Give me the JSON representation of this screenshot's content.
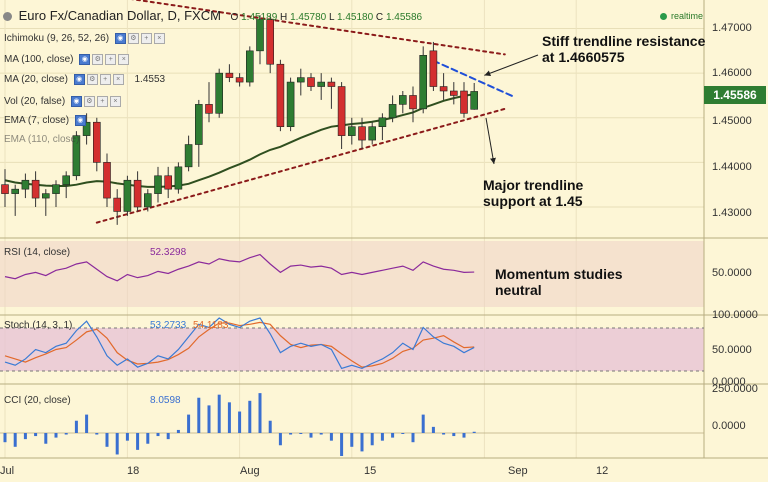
{
  "header": {
    "title": "Euro Fx/Canadian Dollar, D, FXCM",
    "open_label": "O",
    "open": "1.45189",
    "high_label": "H",
    "high": "1.45780",
    "low_label": "L",
    "low": "1.45180",
    "close_label": "C",
    "close": "1.45586",
    "realtime": "realtime"
  },
  "price_tag": "1.45586",
  "indicators": {
    "ichimoku": "Ichimoku (9, 26, 52, 26)",
    "ma100": "MA (100, close)",
    "ma20": "MA (20, close)",
    "ma20_value": "1.4553",
    "vol": "Vol (20, false)",
    "ema7": "EMA (7, close)",
    "ema110": "EMA (110, close)"
  },
  "annotations": {
    "resistance_line1": "Stiff trendline resistance",
    "resistance_line2": "at 1.4660575",
    "support_line1": "Major trendline",
    "support_line2": "support at 1.45",
    "momentum_line1": "Momentum studies",
    "momentum_line2": "neutral"
  },
  "panels": {
    "rsi": {
      "label": "RSI (14, close)",
      "value": "52.3298",
      "ticks": [
        "50.0000"
      ]
    },
    "stoch": {
      "label": "Stoch (14, 3, 1)",
      "k_value": "53.2733",
      "d_value": "54.1183",
      "ticks": [
        "100.0000",
        "50.0000",
        "0.0000"
      ]
    },
    "cci": {
      "label": "CCI (20, close)",
      "value": "8.0598",
      "ticks": [
        "250.0000",
        "0.0000"
      ]
    }
  },
  "colors": {
    "up": "#2e7d32",
    "down": "#d32f2f",
    "ma": "#2f4f1f",
    "trend": "#8b1a1a",
    "blue_dash": "#1f4fd8",
    "rsi": "#8b2a9b",
    "stoch_k": "#3a7bd5",
    "stoch_d": "#e26a2c",
    "cci": "#3a6fd0",
    "band": "#e8c8d8",
    "background": "#fdf6d6"
  },
  "chart_data": {
    "type": "candlestick",
    "title": "Euro Fx/Canadian Dollar, D, FXCM",
    "price_axis": {
      "ticks": [
        "1.47000",
        "1.46000",
        "1.45000",
        "1.44000",
        "1.43000"
      ],
      "ylim": [
        1.4235,
        1.4755
      ]
    },
    "x_labels": [
      {
        "text": "Jul",
        "index": 0
      },
      {
        "text": "18",
        "index": 12
      },
      {
        "text": "Aug",
        "index": 23
      },
      {
        "text": "15",
        "index": 34
      },
      {
        "text": "Sep",
        "index": 47
      },
      {
        "text": "12",
        "index": 56
      }
    ],
    "candles": [
      [
        1.435,
        1.4385,
        1.43,
        1.433
      ],
      [
        1.433,
        1.435,
        1.428,
        1.434
      ],
      [
        1.434,
        1.4375,
        1.432,
        1.436
      ],
      [
        1.436,
        1.438,
        1.43,
        1.432
      ],
      [
        1.432,
        1.434,
        1.428,
        1.433
      ],
      [
        1.433,
        1.436,
        1.43,
        1.435
      ],
      [
        1.435,
        1.438,
        1.432,
        1.437
      ],
      [
        1.437,
        1.447,
        1.436,
        1.446
      ],
      [
        1.446,
        1.451,
        1.444,
        1.449
      ],
      [
        1.449,
        1.45,
        1.438,
        1.44
      ],
      [
        1.44,
        1.442,
        1.43,
        1.432
      ],
      [
        1.432,
        1.434,
        1.426,
        1.429
      ],
      [
        1.429,
        1.437,
        1.428,
        1.436
      ],
      [
        1.436,
        1.438,
        1.429,
        1.43
      ],
      [
        1.43,
        1.434,
        1.429,
        1.433
      ],
      [
        1.433,
        1.439,
        1.431,
        1.437
      ],
      [
        1.437,
        1.439,
        1.432,
        1.434
      ],
      [
        1.434,
        1.44,
        1.433,
        1.439
      ],
      [
        1.439,
        1.446,
        1.438,
        1.444
      ],
      [
        1.444,
        1.454,
        1.439,
        1.453
      ],
      [
        1.453,
        1.458,
        1.449,
        1.451
      ],
      [
        1.451,
        1.461,
        1.45,
        1.46
      ],
      [
        1.46,
        1.462,
        1.458,
        1.459
      ],
      [
        1.459,
        1.46,
        1.457,
        1.458
      ],
      [
        1.458,
        1.466,
        1.457,
        1.465
      ],
      [
        1.465,
        1.473,
        1.462,
        1.472
      ],
      [
        1.472,
        1.473,
        1.46,
        1.462
      ],
      [
        1.462,
        1.463,
        1.447,
        1.448
      ],
      [
        1.448,
        1.459,
        1.447,
        1.458
      ],
      [
        1.458,
        1.461,
        1.455,
        1.459
      ],
      [
        1.459,
        1.46,
        1.456,
        1.457
      ],
      [
        1.457,
        1.46,
        1.454,
        1.458
      ],
      [
        1.458,
        1.459,
        1.452,
        1.457
      ],
      [
        1.457,
        1.458,
        1.443,
        1.446
      ],
      [
        1.446,
        1.45,
        1.444,
        1.448
      ],
      [
        1.448,
        1.45,
        1.443,
        1.445
      ],
      [
        1.445,
        1.449,
        1.444,
        1.448
      ],
      [
        1.448,
        1.451,
        1.445,
        1.45
      ],
      [
        1.45,
        1.455,
        1.449,
        1.453
      ],
      [
        1.453,
        1.456,
        1.451,
        1.455
      ],
      [
        1.455,
        1.457,
        1.449,
        1.452
      ],
      [
        1.452,
        1.466,
        1.451,
        1.464
      ],
      [
        1.465,
        1.467,
        1.456,
        1.457
      ],
      [
        1.457,
        1.46,
        1.454,
        1.456
      ],
      [
        1.456,
        1.458,
        1.453,
        1.455
      ],
      [
        1.456,
        1.458,
        1.45,
        1.451
      ],
      [
        1.4519,
        1.4578,
        1.4518,
        1.4559
      ]
    ],
    "ma20": [
      1.436,
      1.4355,
      1.4352,
      1.435,
      1.4348,
      1.4347,
      1.4347,
      1.435,
      1.4355,
      1.4358,
      1.4357,
      1.4353,
      1.435,
      1.4347,
      1.4345,
      1.4345,
      1.4346,
      1.4348,
      1.4352,
      1.436,
      1.4368,
      1.4377,
      1.4387,
      1.4396,
      1.4406,
      1.4418,
      1.4428,
      1.4435,
      1.4445,
      1.4455,
      1.4464,
      1.4473,
      1.448,
      1.4483,
      1.4486,
      1.4488,
      1.4491,
      1.4495,
      1.45,
      1.4506,
      1.4512,
      1.4522,
      1.453,
      1.4538,
      1.4544,
      1.4549,
      1.4553
    ],
    "trendlines": [
      {
        "name": "resistance",
        "from": [
          -2,
          1.4815
        ],
        "to": [
          49,
          1.4642
        ],
        "style": "dotted"
      },
      {
        "name": "support",
        "from": [
          9,
          1.4265
        ],
        "to": [
          49,
          1.452
        ],
        "style": "dotted"
      },
      {
        "name": "short-resistance",
        "from": [
          42,
          1.4628
        ],
        "to": [
          50,
          1.4546
        ],
        "style": "dashed"
      }
    ],
    "rsi": {
      "ylim": [
        20,
        80
      ],
      "values": [
        48,
        46,
        50,
        52,
        49,
        54,
        56,
        60,
        62,
        55,
        48,
        44,
        50,
        47,
        49,
        53,
        51,
        55,
        58,
        62,
        60,
        65,
        63,
        62,
        66,
        69,
        60,
        52,
        58,
        59,
        57,
        58,
        56,
        50,
        52,
        50,
        52,
        54,
        56,
        58,
        54,
        62,
        58,
        55,
        54,
        52,
        52.3
      ]
    },
    "stoch": {
      "ylim": [
        0,
        100
      ],
      "k": [
        30,
        25,
        35,
        50,
        45,
        55,
        60,
        80,
        95,
        70,
        40,
        25,
        35,
        22,
        28,
        40,
        35,
        50,
        70,
        90,
        85,
        100,
        90,
        85,
        95,
        100,
        75,
        45,
        55,
        60,
        55,
        58,
        50,
        20,
        25,
        20,
        28,
        35,
        45,
        60,
        50,
        85,
        70,
        60,
        55,
        45,
        53.3
      ],
      "d": [
        40,
        35,
        30,
        37,
        43,
        50,
        53,
        65,
        78,
        82,
        68,
        45,
        33,
        27,
        28,
        30,
        34,
        42,
        52,
        70,
        82,
        92,
        92,
        88,
        90,
        93,
        90,
        72,
        58,
        53,
        57,
        58,
        55,
        43,
        32,
        22,
        24,
        28,
        36,
        47,
        52,
        65,
        68,
        72,
        62,
        53,
        54.1
      ]
    },
    "cci": {
      "ylim": [
        -150,
        300
      ],
      "values": [
        -60,
        -90,
        -40,
        -20,
        -70,
        -30,
        -10,
        80,
        120,
        -10,
        -90,
        -140,
        -50,
        -110,
        -70,
        -20,
        -40,
        20,
        120,
        230,
        180,
        250,
        200,
        140,
        210,
        260,
        80,
        -80,
        -10,
        0,
        -30,
        -10,
        -50,
        -150,
        -90,
        -120,
        -80,
        -50,
        -30,
        0,
        -60,
        120,
        40,
        -10,
        -20,
        -30,
        8
      ]
    }
  }
}
